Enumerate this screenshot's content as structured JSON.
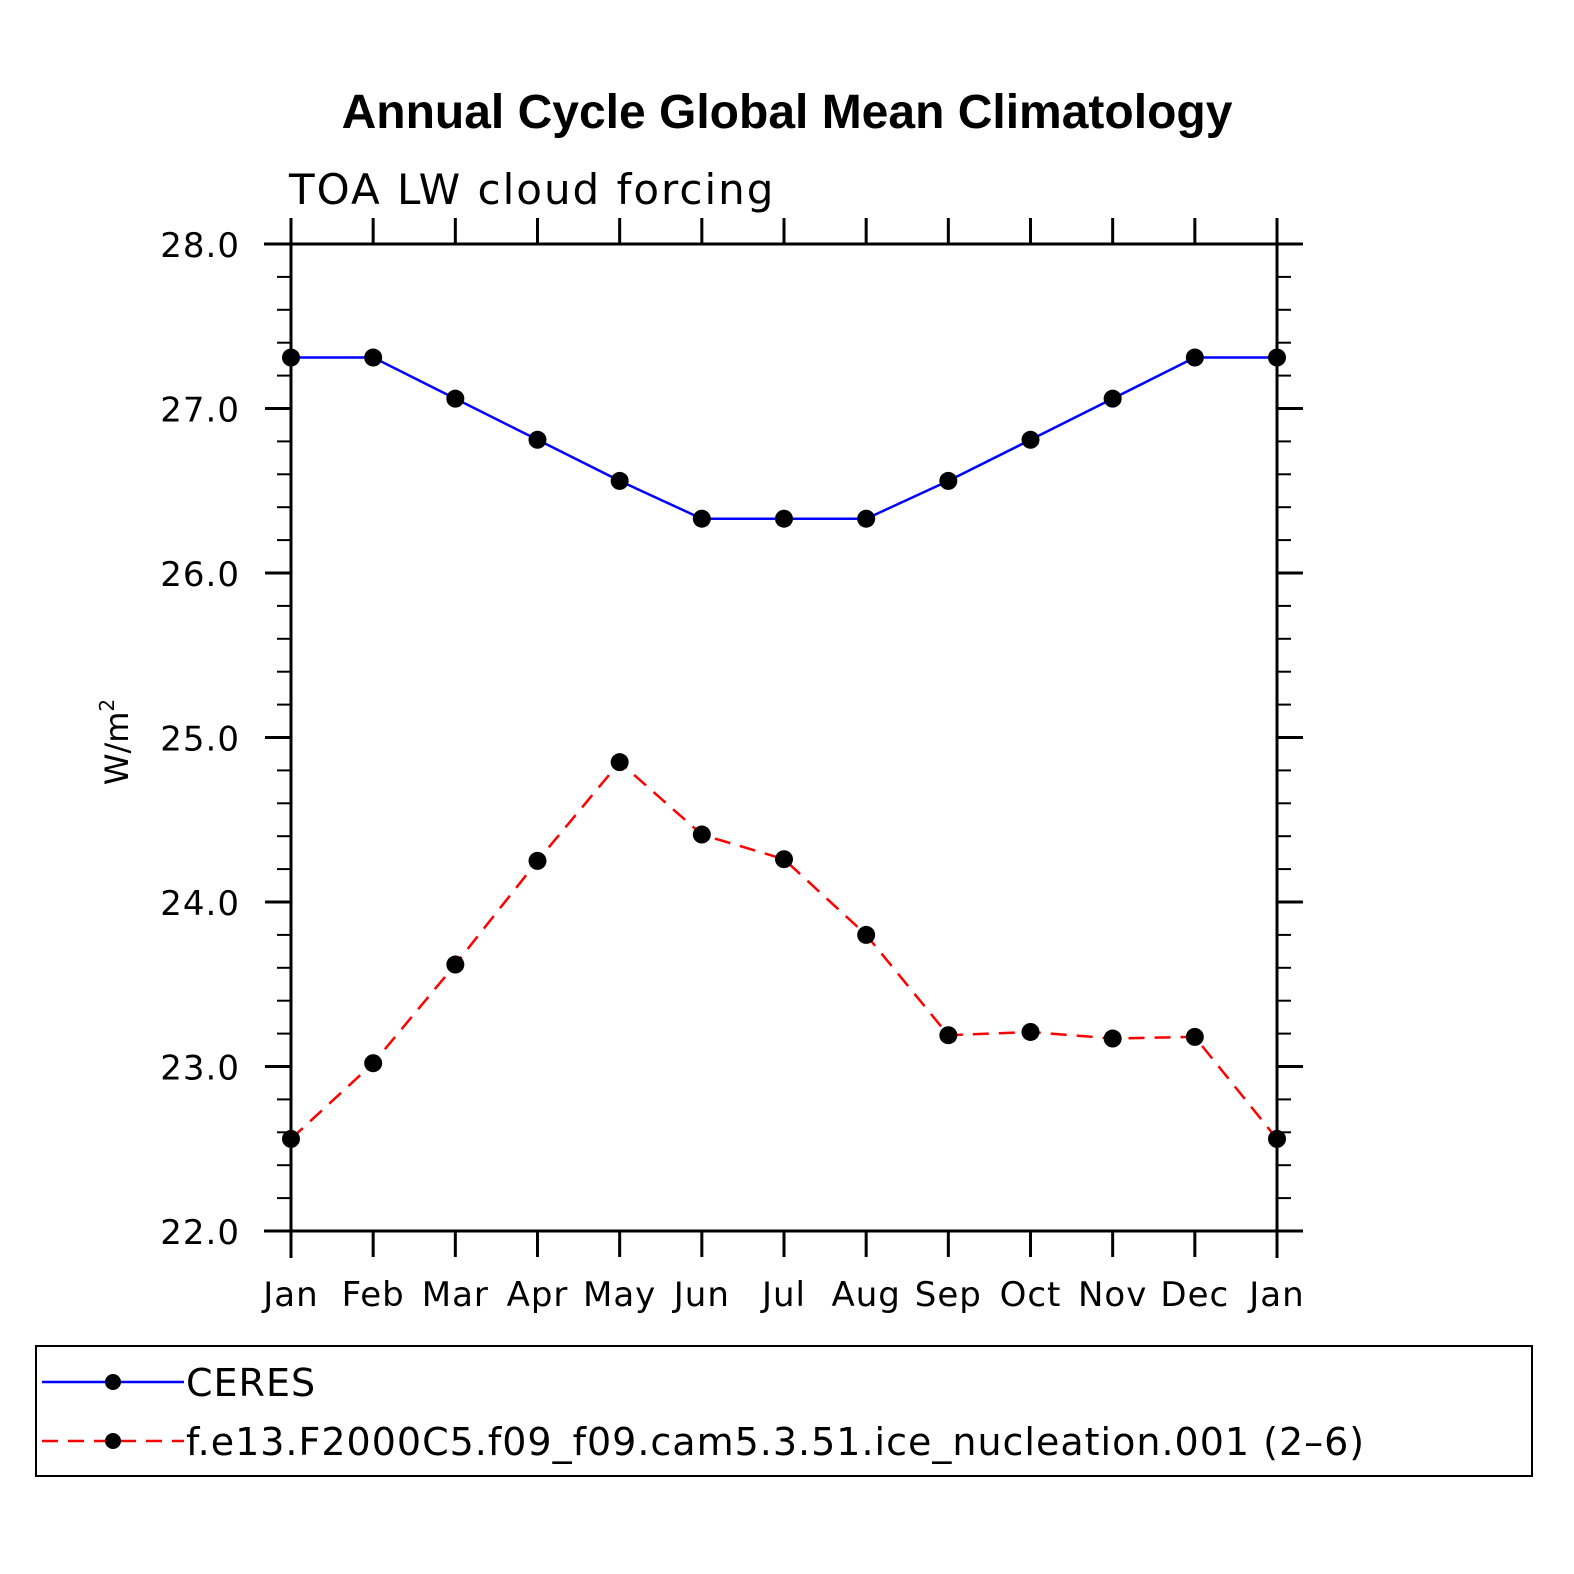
{
  "chart_data": {
    "type": "line",
    "title": "Annual Cycle Global Mean Climatology",
    "subtitle": "TOA LW cloud forcing",
    "ylabel": "W/m",
    "ylabel_superscript": "2",
    "ylim": [
      22.0,
      28.0
    ],
    "yticks": [
      "22.0",
      "23.0",
      "24.0",
      "25.0",
      "26.0",
      "27.0",
      "28.0"
    ],
    "categories": [
      "Jan",
      "Feb",
      "Mar",
      "Apr",
      "May",
      "Jun",
      "Jul",
      "Aug",
      "Sep",
      "Oct",
      "Nov",
      "Dec",
      "Jan"
    ],
    "series": [
      {
        "name": "CERES",
        "color": "#0000ff",
        "dash": "solid",
        "values": [
          27.31,
          27.31,
          27.06,
          26.81,
          26.56,
          26.33,
          26.33,
          26.33,
          26.56,
          26.81,
          27.06,
          27.31,
          27.31
        ]
      },
      {
        "name": "f.e13.F2000C5.f09_f09.cam5.3.51.ice_nucleation.001 (2–6)",
        "color": "#ff0000",
        "dash": "dashed",
        "values": [
          22.56,
          23.02,
          23.62,
          24.25,
          24.85,
          24.41,
          24.26,
          23.8,
          23.19,
          23.21,
          23.17,
          23.18,
          22.56
        ]
      }
    ],
    "legend_position": "bottom"
  }
}
